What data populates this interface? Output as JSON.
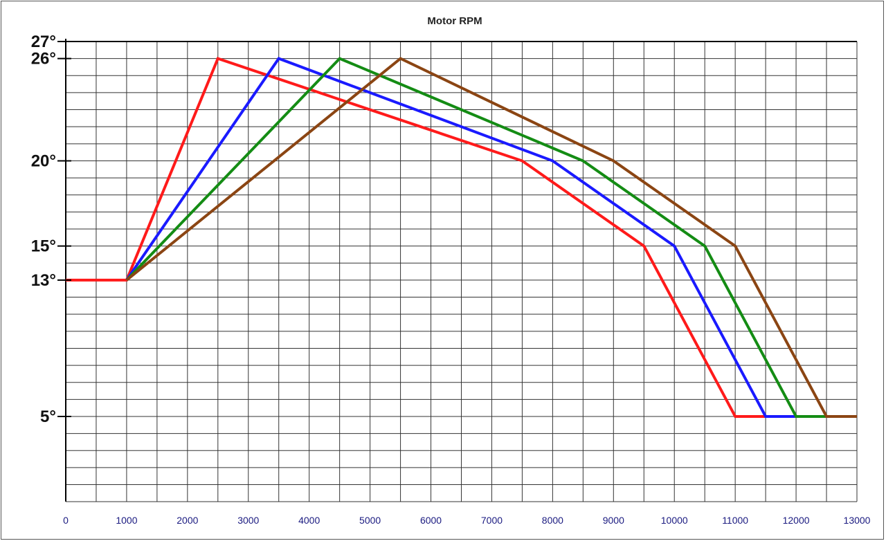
{
  "chart_data": {
    "type": "line",
    "title": "Motor RPM",
    "xlabel": "",
    "ylabel": "",
    "xlim": [
      0,
      13000
    ],
    "ylim": [
      0,
      27
    ],
    "grid": true,
    "x_ticks": [
      0,
      1000,
      2000,
      3000,
      4000,
      5000,
      6000,
      7000,
      8000,
      9000,
      10000,
      11000,
      12000,
      13000
    ],
    "x_tick_labels": [
      "0",
      "1000",
      "2000",
      "3000",
      "4000",
      "5000",
      "6000",
      "7000",
      "8000",
      "9000",
      "10000",
      "11000",
      "12000",
      "13000"
    ],
    "y_ticks": [
      5,
      13,
      15,
      20,
      26,
      27
    ],
    "y_tick_labels": [
      "5°",
      "13°",
      "15°",
      "20°",
      "26°",
      "27°"
    ],
    "series": [
      {
        "color": "#ff1a1a",
        "points": [
          [
            0,
            13
          ],
          [
            1000,
            13
          ],
          [
            2500,
            26
          ],
          [
            7500,
            20
          ],
          [
            9500,
            15
          ],
          [
            11000,
            5
          ],
          [
            11500,
            5
          ]
        ]
      },
      {
        "color": "#1a1aff",
        "points": [
          [
            1000,
            13
          ],
          [
            3500,
            26
          ],
          [
            8000,
            20
          ],
          [
            10000,
            15
          ],
          [
            11500,
            5
          ],
          [
            12000,
            5
          ]
        ]
      },
      {
        "color": "#148c14",
        "points": [
          [
            1000,
            13
          ],
          [
            4500,
            26
          ],
          [
            8500,
            20
          ],
          [
            10500,
            15
          ],
          [
            12000,
            5
          ],
          [
            12500,
            5
          ]
        ]
      },
      {
        "color": "#8b4513",
        "points": [
          [
            1000,
            13
          ],
          [
            5500,
            26
          ],
          [
            9000,
            20
          ],
          [
            11000,
            15
          ],
          [
            12500,
            5
          ],
          [
            13000,
            5
          ]
        ]
      }
    ]
  }
}
